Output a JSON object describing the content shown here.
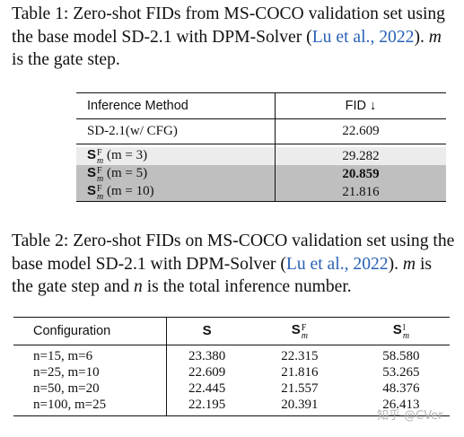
{
  "caption1": {
    "lead": "Table 1:  Zero-shot FIDs from MS-COCO validation set using the base model SD-2.1 with DPM-Solver (",
    "cite": "Lu et al., 2022",
    "tail_a": "). ",
    "var": "m",
    "tail_b": " is the gate step."
  },
  "table1": {
    "header": {
      "method": "Inference Method",
      "fid": "FID ↓"
    },
    "baseline": {
      "method": "SD-2.1(w/ CFG)",
      "fid": "22.609"
    },
    "rows": [
      {
        "sup": "F",
        "sub": "m",
        "cond": "(m = 3)",
        "fid": "29.282"
      },
      {
        "sup": "F",
        "sub": "m",
        "cond": "(m = 5)",
        "fid": "20.859"
      },
      {
        "sup": "F",
        "sub": "m",
        "cond": "(m = 10)",
        "fid": "21.816"
      }
    ],
    "symbol": "S"
  },
  "caption2": {
    "lead": "Table 2: Zero-shot FIDs on MS-COCO validation set using the base model SD-2.1 with DPM-Solver (",
    "cite": "Lu et al., 2022",
    "tail_a": "). ",
    "var_m": "m",
    "mid": " is the gate step and ",
    "var_n": "n",
    "tail_b": " is the total inference number."
  },
  "table2": {
    "header": {
      "config": "Configuration",
      "s": "S",
      "sf": "S",
      "sf_sup": "F",
      "sf_sub": "m",
      "sl": "S",
      "sl_sup": "l",
      "sl_sub": "m"
    },
    "rows": [
      {
        "config": "n=15, m=6",
        "s": "23.380",
        "sf": "22.315",
        "sl": "58.580"
      },
      {
        "config": "n=25, m=10",
        "s": "22.609",
        "sf": "21.816",
        "sl": "53.265"
      },
      {
        "config": "n=50, m=20",
        "s": "22.445",
        "sf": "21.557",
        "sl": "48.376"
      },
      {
        "config": "n=100, m=25",
        "s": "22.195",
        "sf": "20.391",
        "sl": "26.413"
      }
    ]
  },
  "watermark": "知乎 @CVer"
}
